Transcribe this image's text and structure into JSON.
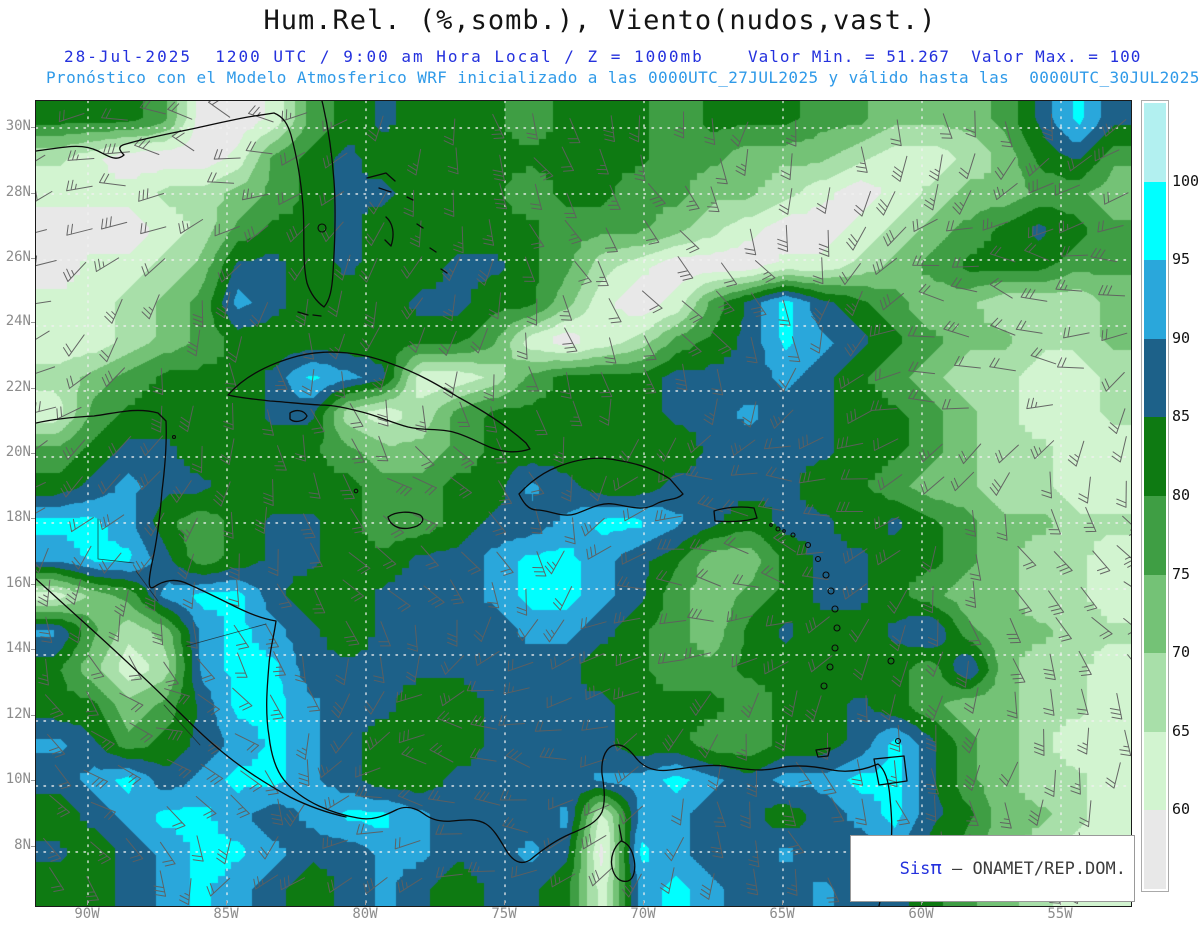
{
  "header": {
    "title": "Hum.Rel. (%,somb.), Viento(nudos,vast.)",
    "subtitle_left": "28-Jul-2025  1200 UTC / 9:00 am Hora Local / Z = 1000mb",
    "subtitle_right": "Valor Min. = 51.267  Valor Max. = 100",
    "forecast_line": "Pronóstico con el Modelo Atmosferico WRF inicializado a las 0000UTC_27JUL2025 y válido hasta las  0000UTC_30JUL2025",
    "colors": {
      "subtitle_blue": "#2431dd",
      "forecast_blue": "#2f9ae8"
    }
  },
  "map": {
    "lat_labels": [
      "30N",
      "28N",
      "26N",
      "24N",
      "22N",
      "20N",
      "18N",
      "16N",
      "14N",
      "12N",
      "10N",
      "8N"
    ],
    "lon_labels": [
      "90W",
      "85W",
      "80W",
      "75W",
      "70W",
      "65W",
      "60W",
      "55W"
    ],
    "branding": {
      "prefix": "Sis",
      "pi": "π",
      "suffix": " – ONAMET/REP.DOM."
    }
  },
  "colorbar": {
    "tick_labels": [
      "100",
      "95",
      "90",
      "85",
      "80",
      "75",
      "70",
      "65",
      "60"
    ],
    "segment_colors_top_to_bottom": [
      "#B2F0F0",
      "#00FFFF",
      "#2AA7DB",
      "#1D6189",
      "#0E7A12",
      "#3F9E44",
      "#74C276",
      "#A8DFA9",
      "#D2F4D0",
      "#E8E8E8"
    ]
  },
  "chart_data": {
    "type": "heatmap",
    "variable": "Relative humidity (%) shaded, wind (knots) barbs, 1000 mb",
    "min_value": 51.267,
    "max_value": 100,
    "thresholds": [
      60,
      65,
      70,
      75,
      80,
      85,
      90,
      95
    ],
    "palette_hex": [
      "#E8E8E8",
      "#D2F4D0",
      "#A8DFA9",
      "#74C276",
      "#3F9E44",
      "#0E7A12",
      "#1D6189",
      "#2AA7DB",
      "#00FFFF"
    ],
    "lat_range_deg_n": [
      6.4,
      30.8
    ],
    "lon_range_deg_w": [
      92.0,
      52.5
    ],
    "grid": {
      "cols": 30,
      "rows": 22,
      "values": [
        [
          82,
          82,
          82,
          77,
          57,
          57,
          62,
          77,
          82,
          87,
          82,
          82,
          82,
          77,
          82,
          82,
          82,
          77,
          82,
          82,
          82,
          77,
          77,
          72,
          72,
          72,
          77,
          87,
          97,
          87
        ],
        [
          67,
          62,
          57,
          57,
          57,
          62,
          77,
          82,
          87,
          82,
          82,
          82,
          82,
          82,
          82,
          82,
          82,
          77,
          77,
          72,
          72,
          72,
          67,
          62,
          62,
          67,
          72,
          82,
          87,
          77
        ],
        [
          62,
          62,
          62,
          67,
          67,
          72,
          77,
          82,
          87,
          87,
          82,
          82,
          82,
          77,
          82,
          82,
          77,
          77,
          72,
          72,
          67,
          62,
          57,
          62,
          67,
          72,
          72,
          77,
          77,
          72
        ],
        [
          57,
          57,
          57,
          62,
          67,
          77,
          82,
          82,
          87,
          82,
          82,
          82,
          82,
          82,
          77,
          77,
          77,
          72,
          67,
          62,
          57,
          57,
          62,
          67,
          72,
          77,
          82,
          87,
          82,
          77
        ],
        [
          57,
          62,
          62,
          67,
          72,
          87,
          87,
          82,
          87,
          82,
          82,
          87,
          87,
          82,
          77,
          67,
          62,
          57,
          57,
          57,
          62,
          62,
          67,
          72,
          77,
          82,
          82,
          82,
          77,
          77
        ],
        [
          62,
          62,
          67,
          72,
          77,
          92,
          87,
          82,
          82,
          82,
          87,
          87,
          82,
          82,
          72,
          62,
          57,
          62,
          77,
          87,
          97,
          87,
          82,
          77,
          72,
          72,
          67,
          67,
          67,
          72
        ],
        [
          62,
          62,
          67,
          72,
          77,
          82,
          82,
          82,
          82,
          82,
          82,
          82,
          77,
          62,
          57,
          62,
          67,
          77,
          82,
          87,
          97,
          92,
          87,
          82,
          77,
          72,
          72,
          67,
          67,
          72
        ],
        [
          67,
          72,
          77,
          82,
          82,
          82,
          87,
          97,
          92,
          87,
          62,
          62,
          67,
          77,
          82,
          82,
          82,
          87,
          87,
          87,
          92,
          87,
          82,
          77,
          72,
          67,
          67,
          62,
          62,
          67
        ],
        [
          62,
          77,
          82,
          82,
          82,
          82,
          87,
          87,
          67,
          62,
          67,
          77,
          82,
          82,
          82,
          82,
          82,
          87,
          87,
          92,
          87,
          87,
          82,
          82,
          77,
          72,
          67,
          62,
          62,
          67
        ],
        [
          77,
          82,
          87,
          87,
          82,
          82,
          82,
          82,
          77,
          72,
          72,
          77,
          82,
          82,
          82,
          82,
          82,
          82,
          87,
          87,
          87,
          87,
          82,
          82,
          77,
          72,
          67,
          67,
          62,
          62
        ],
        [
          82,
          87,
          92,
          87,
          87,
          82,
          82,
          82,
          82,
          77,
          77,
          82,
          82,
          92,
          87,
          82,
          82,
          87,
          87,
          87,
          87,
          82,
          82,
          77,
          72,
          72,
          67,
          67,
          62,
          62
        ],
        [
          97,
          97,
          92,
          82,
          77,
          82,
          87,
          87,
          82,
          77,
          77,
          82,
          87,
          87,
          92,
          97,
          97,
          92,
          87,
          82,
          87,
          87,
          82,
          87,
          82,
          77,
          72,
          72,
          67,
          67
        ],
        [
          92,
          97,
          97,
          87,
          77,
          82,
          87,
          87,
          82,
          82,
          87,
          87,
          92,
          97,
          97,
          92,
          87,
          82,
          72,
          72,
          82,
          87,
          87,
          82,
          82,
          77,
          72,
          67,
          67,
          62
        ],
        [
          62,
          72,
          77,
          92,
          97,
          97,
          87,
          82,
          82,
          87,
          87,
          87,
          92,
          97,
          97,
          92,
          87,
          77,
          72,
          77,
          82,
          87,
          87,
          82,
          77,
          72,
          72,
          67,
          67,
          62
        ],
        [
          92,
          77,
          67,
          72,
          92,
          97,
          92,
          87,
          82,
          87,
          87,
          87,
          87,
          92,
          92,
          87,
          82,
          77,
          72,
          82,
          87,
          82,
          82,
          87,
          92,
          77,
          72,
          72,
          67,
          67
        ],
        [
          82,
          72,
          62,
          67,
          92,
          97,
          97,
          87,
          87,
          87,
          87,
          87,
          87,
          87,
          87,
          82,
          82,
          77,
          77,
          82,
          82,
          82,
          82,
          82,
          77,
          92,
          72,
          67,
          67,
          62
        ],
        [
          82,
          82,
          72,
          77,
          87,
          97,
          97,
          92,
          87,
          87,
          82,
          82,
          87,
          87,
          87,
          87,
          82,
          82,
          82,
          77,
          82,
          82,
          87,
          82,
          77,
          72,
          72,
          67,
          67,
          62
        ],
        [
          92,
          87,
          77,
          82,
          87,
          92,
          97,
          92,
          87,
          82,
          82,
          82,
          87,
          87,
          87,
          87,
          82,
          82,
          77,
          77,
          82,
          82,
          87,
          97,
          87,
          77,
          72,
          67,
          62,
          62
        ],
        [
          87,
          92,
          97,
          87,
          92,
          97,
          97,
          92,
          87,
          82,
          82,
          87,
          87,
          87,
          87,
          92,
          92,
          97,
          92,
          87,
          92,
          92,
          97,
          97,
          87,
          77,
          72,
          67,
          67,
          62
        ],
        [
          82,
          87,
          92,
          97,
          97,
          92,
          87,
          92,
          97,
          97,
          92,
          87,
          87,
          87,
          92,
          62,
          92,
          92,
          87,
          87,
          82,
          87,
          92,
          97,
          87,
          82,
          72,
          72,
          67,
          62
        ],
        [
          87,
          82,
          87,
          92,
          97,
          97,
          92,
          87,
          87,
          92,
          92,
          87,
          87,
          92,
          87,
          57,
          97,
          92,
          87,
          87,
          92,
          87,
          87,
          92,
          82,
          77,
          72,
          67,
          62,
          62
        ],
        [
          82,
          82,
          87,
          92,
          97,
          92,
          87,
          82,
          87,
          92,
          87,
          82,
          87,
          87,
          82,
          62,
          92,
          97,
          92,
          87,
          87,
          92,
          87,
          87,
          82,
          77,
          72,
          67,
          62,
          62
        ]
      ]
    }
  }
}
